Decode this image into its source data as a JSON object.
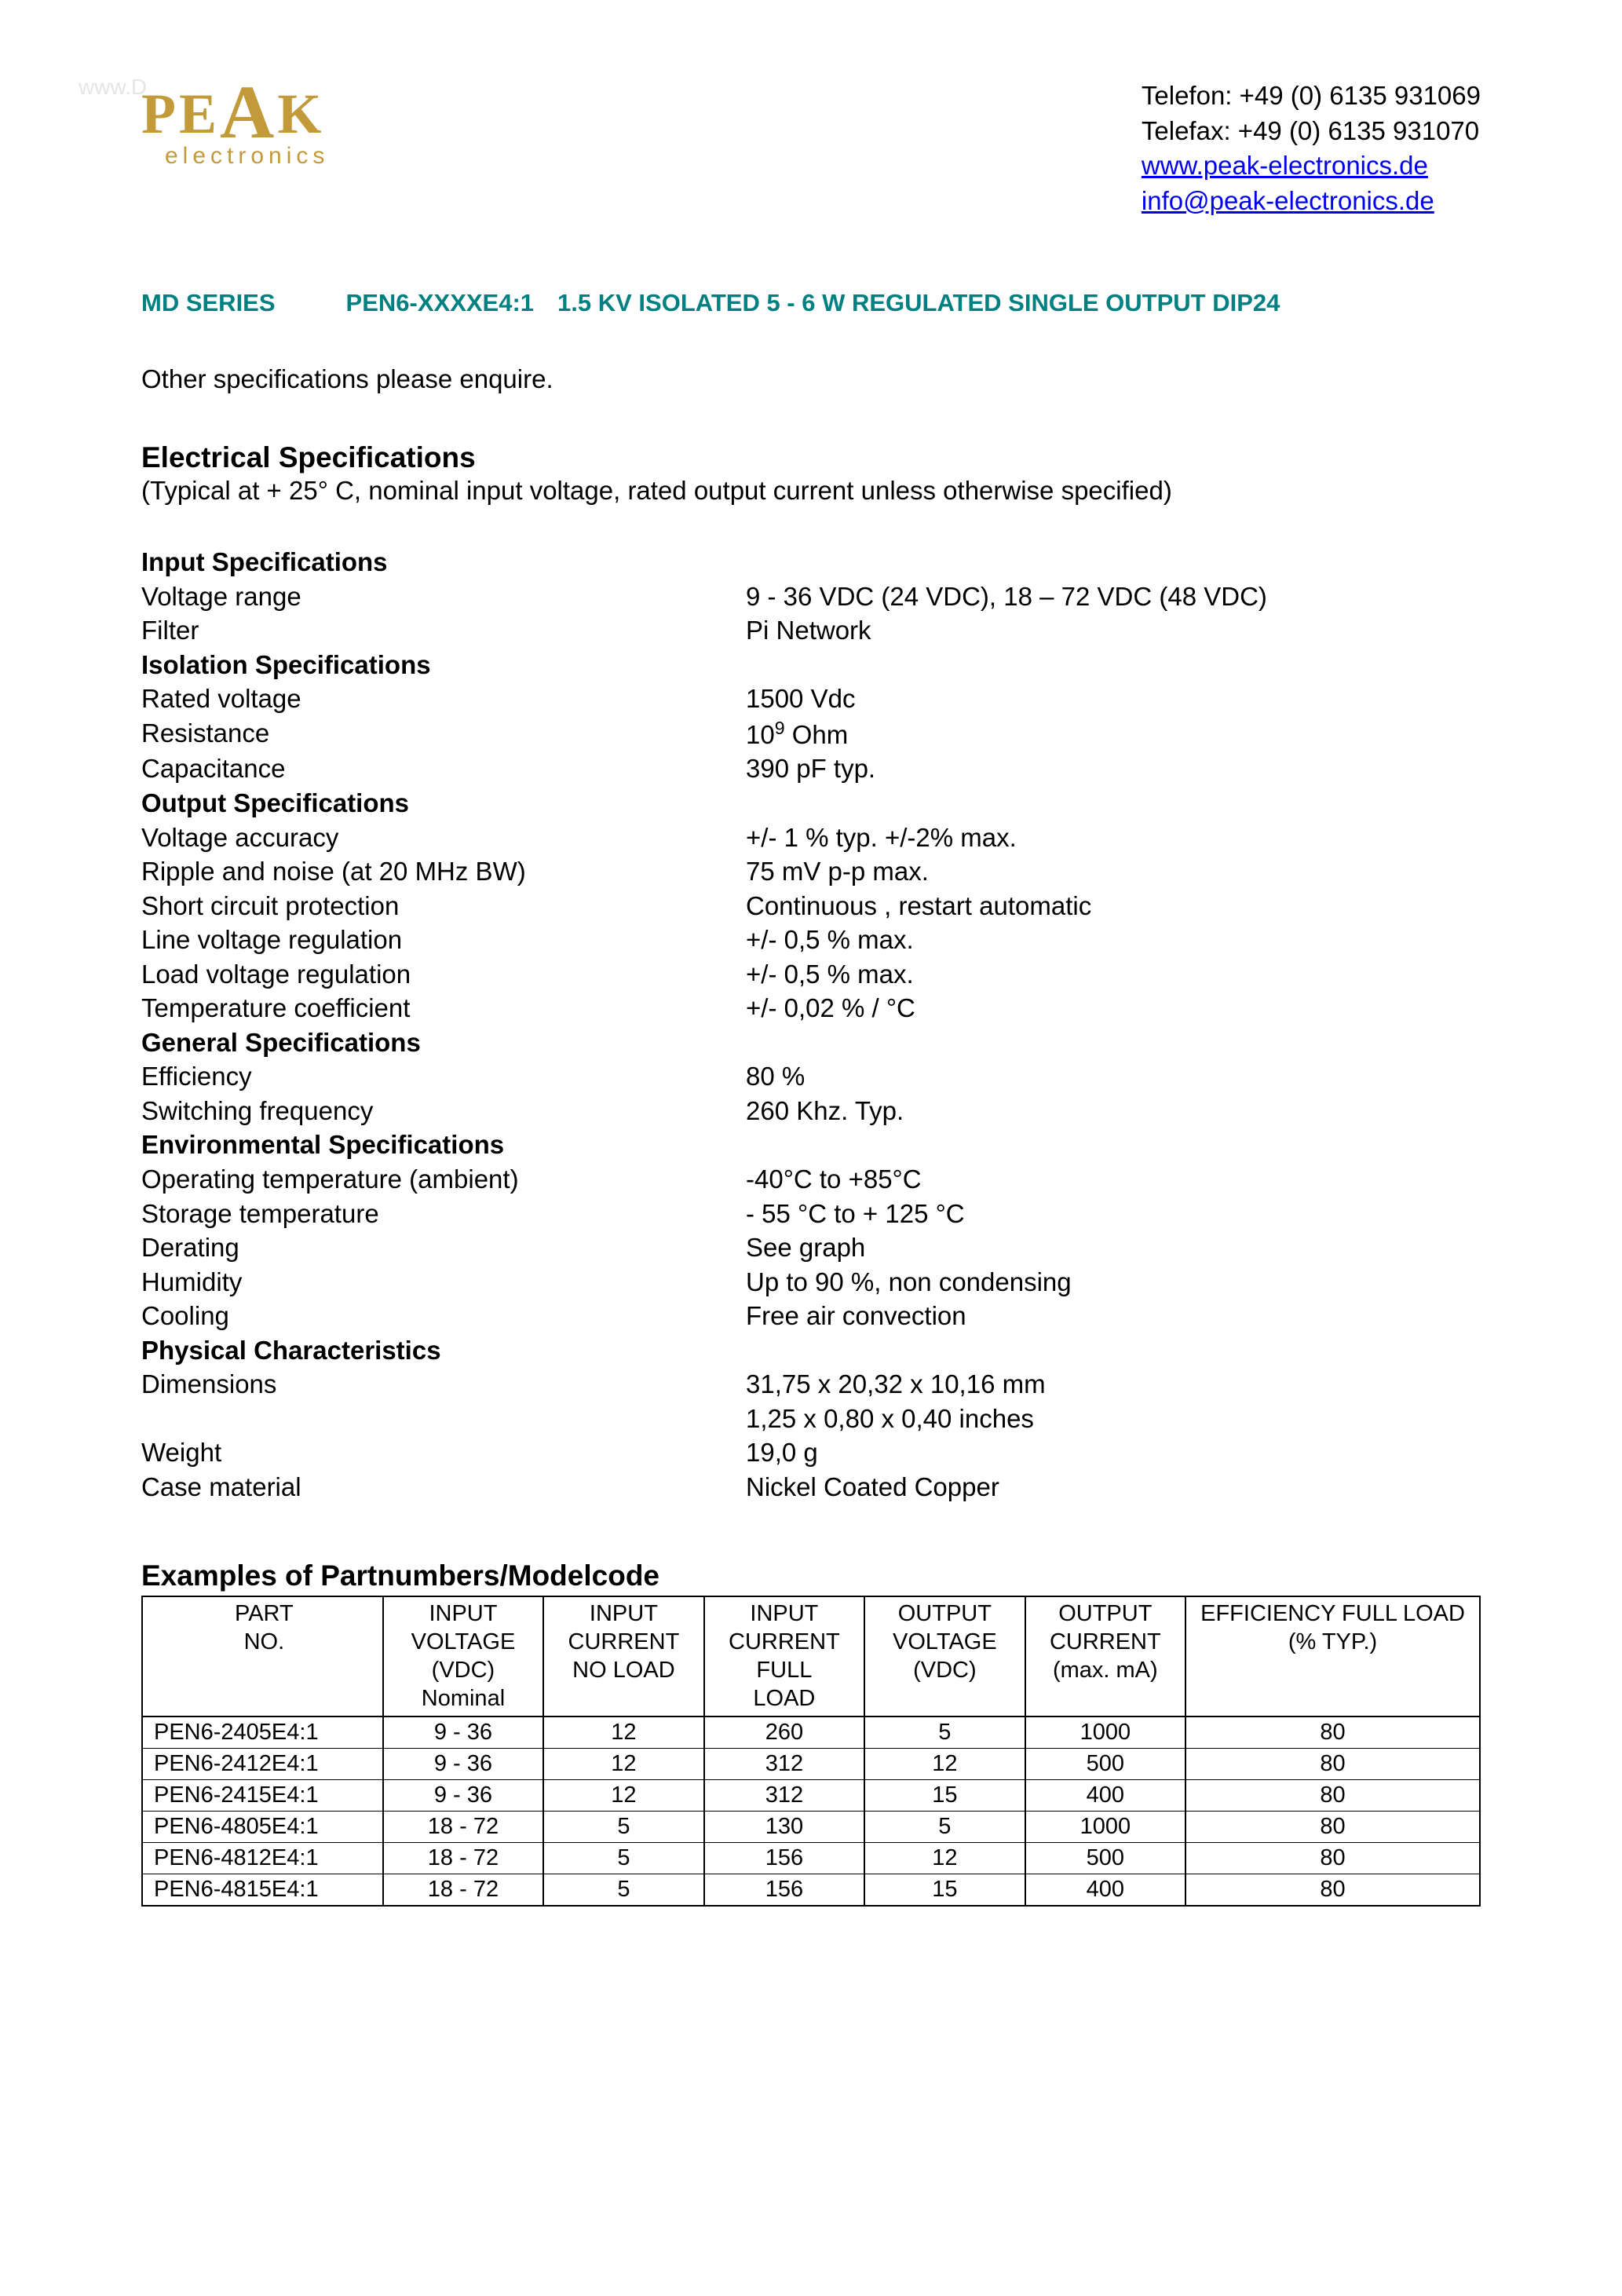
{
  "watermark": "www.D",
  "logo": {
    "p": "P",
    "e": "E",
    "a": "A",
    "k": "K",
    "sub": "electronics"
  },
  "contact": {
    "phone_label": "Telefon: ",
    "phone": "+49 (0) 6135 931069",
    "fax_label": "Telefax: ",
    "fax": "+49 (0) 6135 931070",
    "url": "www.peak-electronics.de",
    "email": "info@peak-electronics.de"
  },
  "series_title": {
    "part1": "MD SERIES",
    "part2": "PEN6-XXXXE4:1",
    "part3": "1.5 KV ISOLATED 5 - 6 W REGULATED SINGLE OUTPUT DIP24"
  },
  "enquire": "Other specifications please enquire.",
  "elec_spec_heading": "Electrical Specifications",
  "elec_spec_note": "(Typical at + 25° C, nominal input voltage, rated output current unless otherwise specified)",
  "specs": {
    "input_h": "Input Specifications",
    "voltage_range_l": "Voltage range",
    "voltage_range_v": "9 - 36 VDC (24 VDC), 18 – 72 VDC (48 VDC)",
    "filter_l": "Filter",
    "filter_v": "Pi Network",
    "isolation_h": "Isolation Specifications",
    "rated_voltage_l": "Rated voltage",
    "rated_voltage_v": "1500 Vdc",
    "resistance_l": "Resistance",
    "resistance_v_pre": "10",
    "resistance_v_sup": "9",
    "resistance_v_post": " Ohm",
    "capacitance_l": "Capacitance",
    "capacitance_v": "390 pF typ.",
    "output_h": "Output Specifications",
    "voltage_acc_l": "Voltage accuracy",
    "voltage_acc_v": "+/- 1 % typ. +/-2% max.",
    "ripple_l": "Ripple and noise (at 20 MHz BW)",
    "ripple_v": "75 mV p-p max.",
    "short_l": "Short circuit protection",
    "short_v": "Continuous , restart automatic",
    "line_reg_l": "Line voltage regulation",
    "line_reg_v": "+/- 0,5 % max.",
    "load_reg_l": "Load voltage regulation",
    "load_reg_v": "+/- 0,5 % max.",
    "temp_coef_l": "Temperature coefficient",
    "temp_coef_v": "+/- 0,02 % / °C",
    "general_h": "General Specifications",
    "eff_l": "Efficiency",
    "eff_v": "80 %",
    "switch_l": "Switching frequency",
    "switch_v": "260 Khz. Typ.",
    "env_h": "Environmental Specifications",
    "op_temp_l": "Operating temperature (ambient)",
    "op_temp_v": "-40°C to +85°C",
    "storage_l": "Storage temperature",
    "storage_v": "- 55 °C to + 125 °C",
    "derating_l": "Derating",
    "derating_v": "See graph",
    "humidity_l": "Humidity",
    "humidity_v": "Up to 90 %, non condensing",
    "cooling_l": "Cooling",
    "cooling_v": "Free air convection",
    "phys_h": "Physical Characteristics",
    "dim_l": "Dimensions",
    "dim_v1": "31,75 x 20,32 x 10,16 mm",
    "dim_v2": "1,25 x 0,80 x 0,40 inches",
    "weight_l": "Weight",
    "weight_v": "19,0 g",
    "case_l": "Case material",
    "case_v": "Nickel Coated Copper"
  },
  "examples_heading": "Examples of Partnumbers/Modelcode",
  "table": {
    "columns": [
      "PART\nNO.",
      "INPUT\nVOLTAGE\n(VDC)\nNominal",
      "INPUT\nCURRENT\nNO LOAD",
      "INPUT\nCURRENT\nFULL\nLOAD",
      "OUTPUT\nVOLTAGE\n(VDC)",
      "OUTPUT\nCURRENT\n(max. mA)",
      "EFFICIENCY FULL LOAD\n(% TYP.)"
    ],
    "rows": [
      [
        "PEN6-2405E4:1",
        "9 - 36",
        "12",
        "260",
        "5",
        "1000",
        "80"
      ],
      [
        "PEN6-2412E4:1",
        "9 - 36",
        "12",
        "312",
        "12",
        "500",
        "80"
      ],
      [
        "PEN6-2415E4:1",
        "9 - 36",
        "12",
        "312",
        "15",
        "400",
        "80"
      ],
      [
        "PEN6-4805E4:1",
        "18 - 72",
        "5",
        "130",
        "5",
        "1000",
        "80"
      ],
      [
        "PEN6-4812E4:1",
        "18 - 72",
        "5",
        "156",
        "12",
        "500",
        "80"
      ],
      [
        "PEN6-4815E4:1",
        "18 - 72",
        "5",
        "156",
        "15",
        "400",
        "80"
      ]
    ]
  },
  "colors": {
    "teal": "#008080",
    "gold": "#c29a3a",
    "link": "#0000ee",
    "text": "#000000",
    "bg": "#ffffff",
    "watermark": "#e5e5e5"
  }
}
